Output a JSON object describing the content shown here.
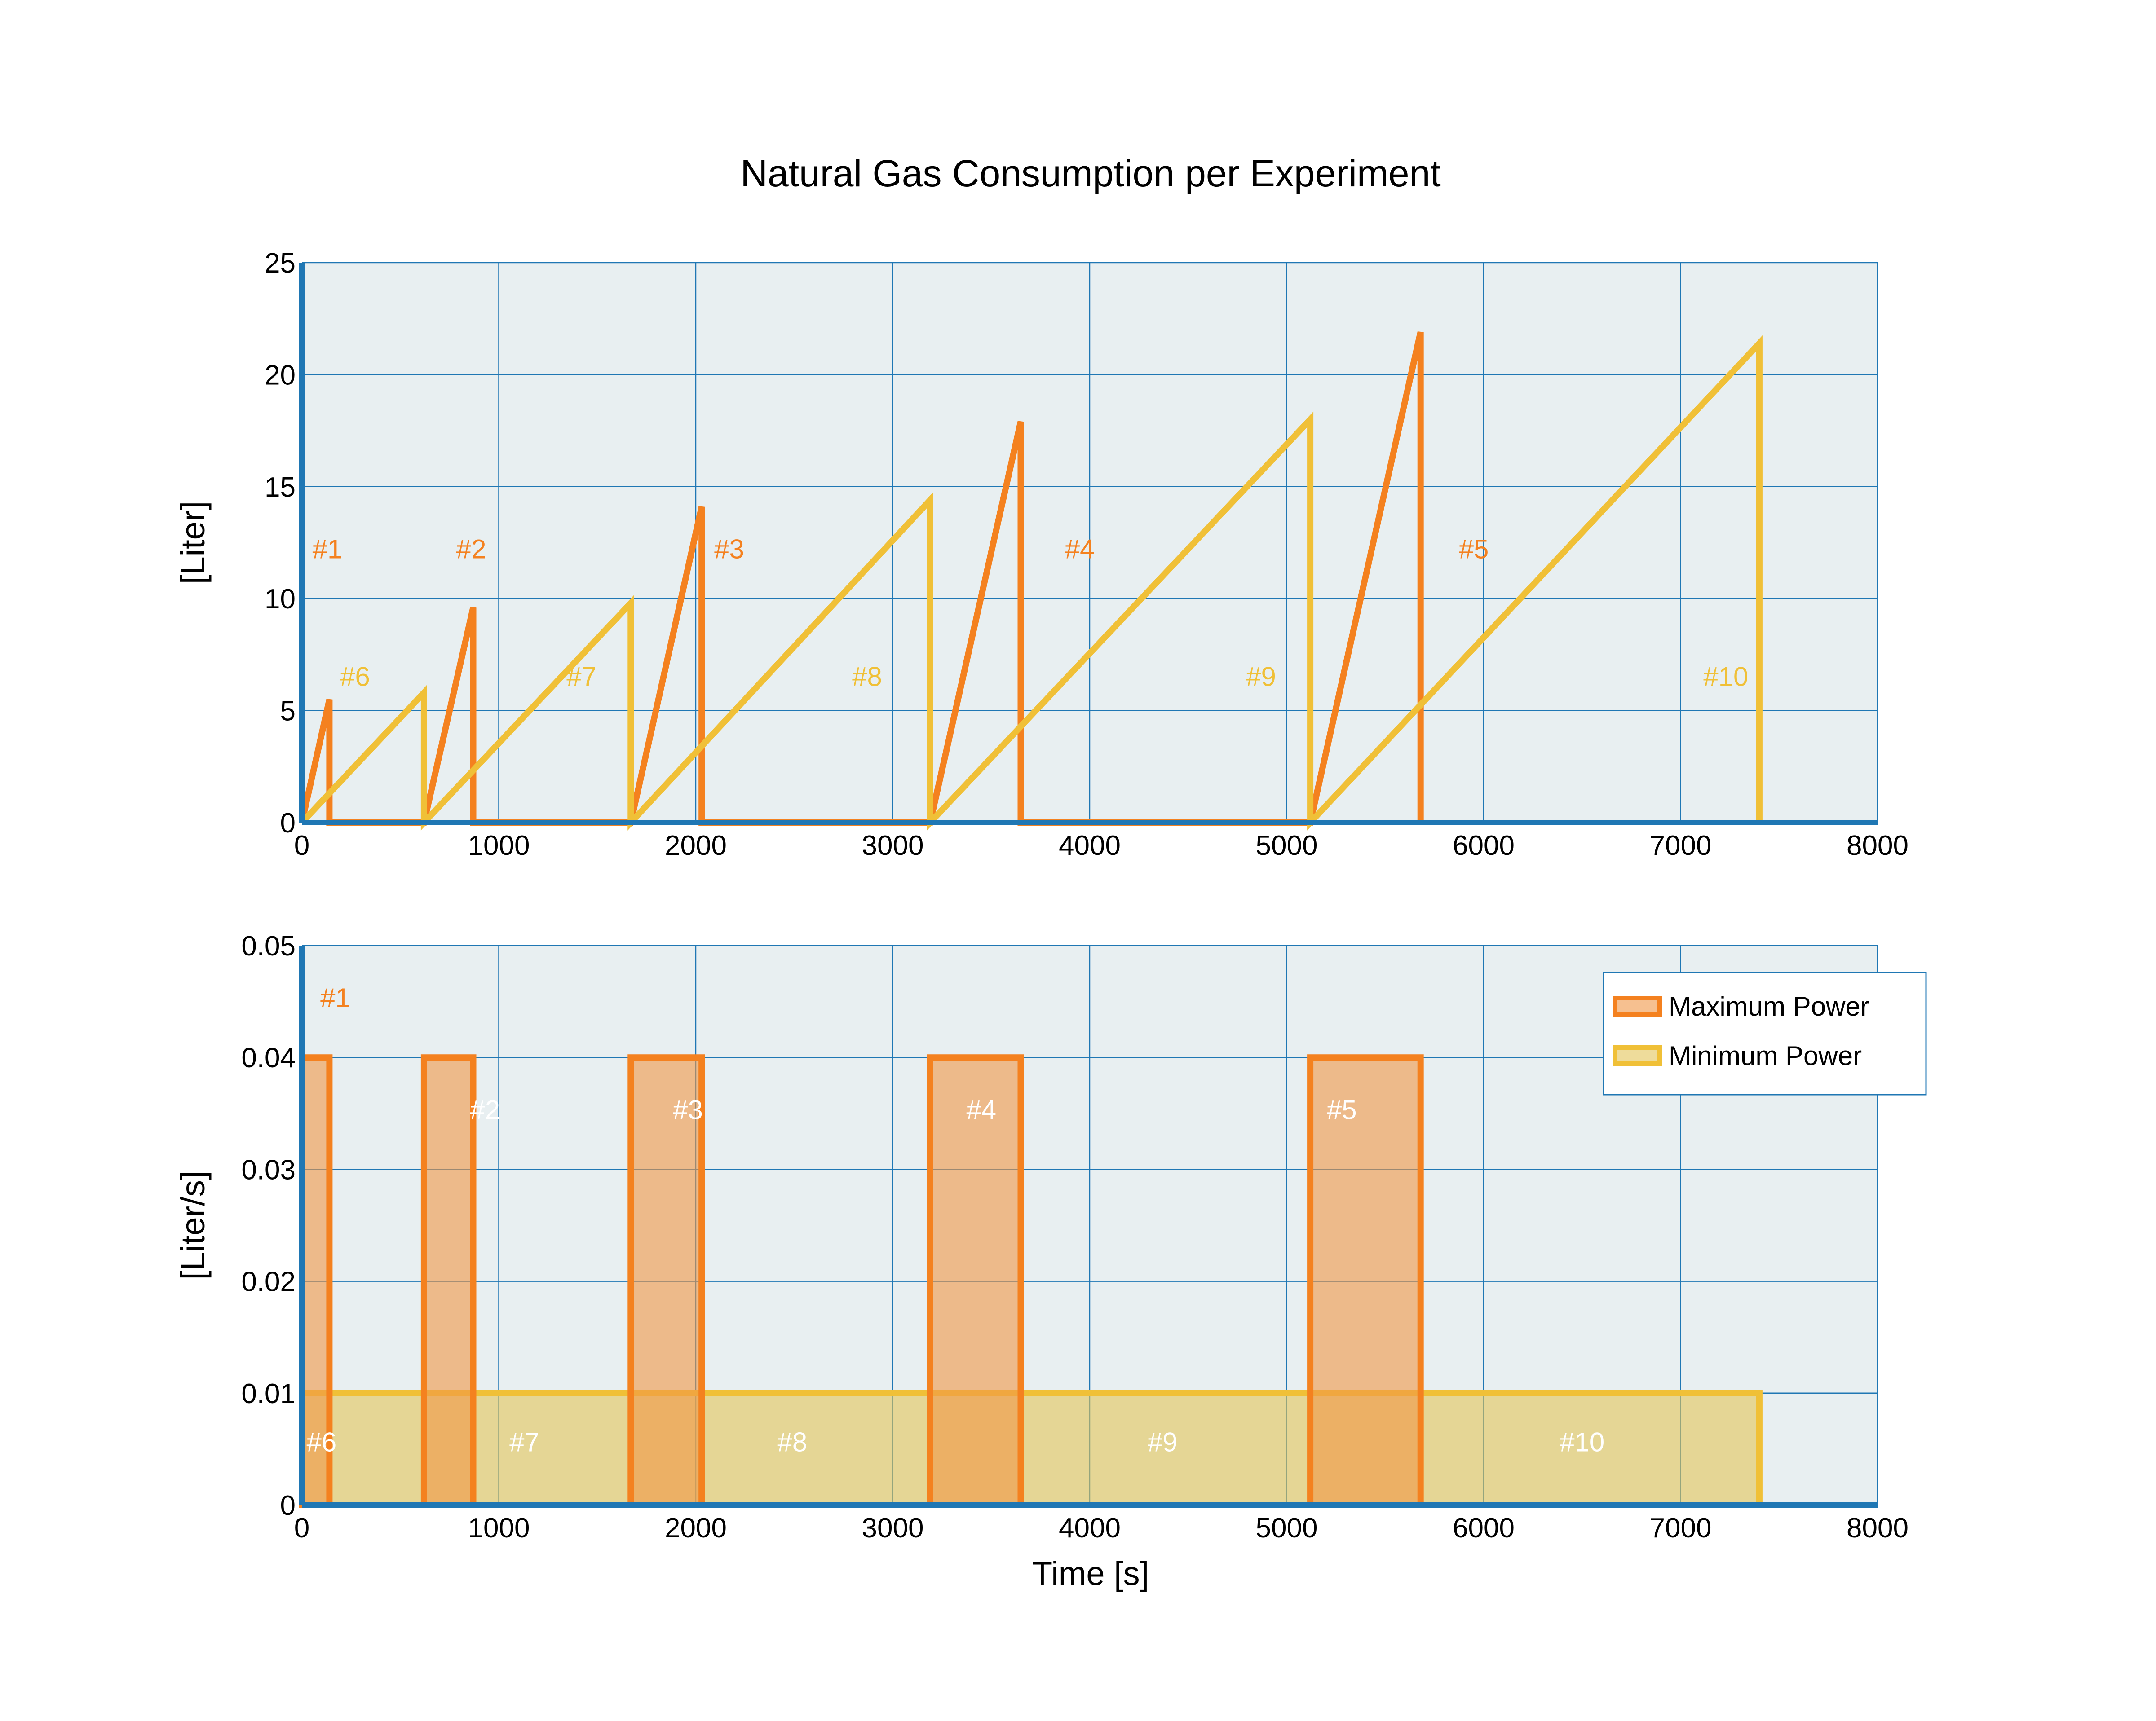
{
  "chart_data": [
    {
      "type": "line",
      "title": "Natural Gas Consumption per Experiment",
      "xlabel": "",
      "ylabel": "[Liter]",
      "xlim": [
        0,
        8000
      ],
      "ylim": [
        0,
        25
      ],
      "xticks": [
        "0",
        "1000",
        "2000",
        "3000",
        "4000",
        "5000",
        "6000",
        "7000",
        "8000"
      ],
      "yticks": [
        "0",
        "5",
        "10",
        "15",
        "20",
        "25"
      ],
      "grid": true,
      "series": [
        {
          "color": "#f4811f",
          "points": [
            [
              0,
              0
            ],
            [
              140,
              5.5
            ],
            [
              140,
              0
            ],
            [
              620,
              0
            ],
            [
              870,
              9.6
            ],
            [
              870,
              0
            ],
            [
              1670,
              0
            ],
            [
              2030,
              14.1
            ],
            [
              2030,
              0
            ],
            [
              3190,
              0
            ],
            [
              3650,
              17.9
            ],
            [
              3650,
              0
            ],
            [
              5120,
              0
            ],
            [
              5680,
              21.9
            ],
            [
              5680,
              0
            ]
          ]
        },
        {
          "color": "#f0c037",
          "points": [
            [
              0,
              0
            ],
            [
              620,
              5.8
            ],
            [
              620,
              0
            ],
            [
              1670,
              9.8
            ],
            [
              1670,
              0
            ],
            [
              3190,
              14.4
            ],
            [
              3190,
              0
            ],
            [
              5120,
              18.0
            ],
            [
              5120,
              0
            ],
            [
              7400,
              21.4
            ],
            [
              7400,
              0
            ]
          ]
        }
      ],
      "annotations": [
        {
          "text": "#1",
          "x": 130,
          "y": 11.8,
          "color": "#f4811f"
        },
        {
          "text": "#2",
          "x": 860,
          "y": 11.8,
          "color": "#f4811f"
        },
        {
          "text": "#3",
          "x": 2170,
          "y": 11.8,
          "color": "#f4811f"
        },
        {
          "text": "#4",
          "x": 3950,
          "y": 11.8,
          "color": "#f4811f"
        },
        {
          "text": "#5",
          "x": 5950,
          "y": 11.8,
          "color": "#f4811f"
        },
        {
          "text": "#6",
          "x": 270,
          "y": 6.1,
          "color": "#f0c037"
        },
        {
          "text": "#7",
          "x": 1420,
          "y": 6.1,
          "color": "#f0c037"
        },
        {
          "text": "#8",
          "x": 2870,
          "y": 6.1,
          "color": "#f0c037"
        },
        {
          "text": "#9",
          "x": 4870,
          "y": 6.1,
          "color": "#f0c037"
        },
        {
          "text": "#10",
          "x": 7230,
          "y": 6.1,
          "color": "#f0c037"
        }
      ]
    },
    {
      "type": "area",
      "title": "",
      "xlabel": "Time [s]",
      "ylabel": "[Liter/s]",
      "xlim": [
        0,
        8000
      ],
      "ylim": [
        0,
        0.05
      ],
      "xticks": [
        "0",
        "1000",
        "2000",
        "3000",
        "4000",
        "5000",
        "6000",
        "7000",
        "8000"
      ],
      "yticks": [
        "0",
        "0.01",
        "0.02",
        "0.03",
        "0.04",
        "0.05"
      ],
      "grid": true,
      "legend_position": "top-right",
      "series": [
        {
          "name": "Minimum Power",
          "color": "#f0c037",
          "fill": "rgba(227,196,88,0.6)",
          "points": [
            [
              0,
              0
            ],
            [
              0,
              0.01
            ],
            [
              7400,
              0.01
            ],
            [
              7400,
              0
            ]
          ]
        },
        {
          "name": "Maximum Power",
          "color": "#f4811f",
          "fill": "rgba(240,150,70,0.6)",
          "points": [
            [
              0,
              0
            ],
            [
              0,
              0.04
            ],
            [
              140,
              0.04
            ],
            [
              140,
              0
            ],
            [
              620,
              0
            ],
            [
              620,
              0.04
            ],
            [
              870,
              0.04
            ],
            [
              870,
              0
            ],
            [
              1670,
              0
            ],
            [
              1670,
              0.04
            ],
            [
              2030,
              0.04
            ],
            [
              2030,
              0
            ],
            [
              3190,
              0
            ],
            [
              3190,
              0.04
            ],
            [
              3650,
              0.04
            ],
            [
              3650,
              0
            ],
            [
              5120,
              0
            ],
            [
              5120,
              0.04
            ],
            [
              5680,
              0.04
            ],
            [
              5680,
              0
            ]
          ]
        }
      ],
      "legend_order": [
        "Maximum Power",
        "Minimum Power"
      ],
      "annotations": [
        {
          "text": "#1",
          "x": 170,
          "y": 0.0445,
          "color": "#f4811f"
        },
        {
          "text": "#2",
          "x": 930,
          "y": 0.0345,
          "color": "#ffffff"
        },
        {
          "text": "#3",
          "x": 1960,
          "y": 0.0345,
          "color": "#ffffff"
        },
        {
          "text": "#4",
          "x": 3450,
          "y": 0.0345,
          "color": "#ffffff"
        },
        {
          "text": "#5",
          "x": 5280,
          "y": 0.0345,
          "color": "#ffffff"
        },
        {
          "text": "#6",
          "x": 100,
          "y": 0.0048,
          "color": "#ffffff"
        },
        {
          "text": "#7",
          "x": 1130,
          "y": 0.0048,
          "color": "#ffffff"
        },
        {
          "text": "#8",
          "x": 2490,
          "y": 0.0048,
          "color": "#ffffff"
        },
        {
          "text": "#9",
          "x": 4370,
          "y": 0.0048,
          "color": "#ffffff"
        },
        {
          "text": "#10",
          "x": 6500,
          "y": 0.0048,
          "color": "#ffffff"
        }
      ]
    }
  ],
  "colors": {
    "plot_bg": "#e8eff1",
    "grid": "#1f77b4",
    "axis": "#1f77b4"
  }
}
